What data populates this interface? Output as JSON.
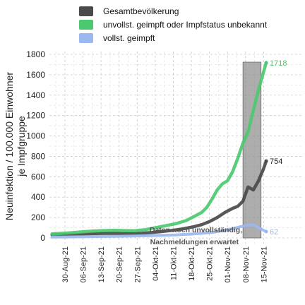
{
  "chart_data": {
    "type": "line",
    "ylabel": "Neuinfektion / 100.000 Einwohner\nje Impfgruppe",
    "ylim": [
      0,
      1800
    ],
    "yticks": [
      0,
      200,
      400,
      600,
      800,
      1000,
      1200,
      1400,
      1600,
      1800
    ],
    "xlim": [
      "2021-08-24",
      "2021-11-19"
    ],
    "xticks": [
      "2021-08-30",
      "2021-09-06",
      "2021-09-13",
      "2021-09-20",
      "2021-09-27",
      "2021-10-04",
      "2021-10-11",
      "2021-10-18",
      "2021-10-25",
      "2021-11-01",
      "2021-11-08",
      "2021-11-15"
    ],
    "xtick_labels": [
      "30-Aug-21",
      "06-Sep-21",
      "13-Sep-21",
      "20-Sep-21",
      "27-Sep-21",
      "04-Okt-21",
      "11-Okt-21",
      "18-Okt-21",
      "25-Okt-21",
      "01-Nov-21",
      "08-Nov-21",
      "15-Nov-21"
    ],
    "grid": true,
    "legend_position": "top",
    "shaded_region": {
      "x_start": "2021-11-07",
      "x_end": "2021-11-14",
      "label_line1": "Daten noch unvollständig,",
      "label_line2": "Nachmeldungen erwartet"
    },
    "series": [
      {
        "name": "Gesamtbevölkerung",
        "color": "#4a4a4a",
        "end_label": "754",
        "points": [
          [
            "2021-08-25",
            30
          ],
          [
            "2021-08-28",
            32
          ],
          [
            "2021-09-01",
            34
          ],
          [
            "2021-09-05",
            36
          ],
          [
            "2021-09-09",
            40
          ],
          [
            "2021-09-13",
            45
          ],
          [
            "2021-09-17",
            44
          ],
          [
            "2021-09-21",
            42
          ],
          [
            "2021-09-25",
            42
          ],
          [
            "2021-09-29",
            46
          ],
          [
            "2021-10-03",
            55
          ],
          [
            "2021-10-07",
            64
          ],
          [
            "2021-10-11",
            75
          ],
          [
            "2021-10-15",
            90
          ],
          [
            "2021-10-19",
            110
          ],
          [
            "2021-10-22",
            130
          ],
          [
            "2021-10-25",
            160
          ],
          [
            "2021-10-28",
            200
          ],
          [
            "2021-10-31",
            250
          ],
          [
            "2021-11-03",
            290
          ],
          [
            "2021-11-05",
            310
          ],
          [
            "2021-11-07",
            360
          ],
          [
            "2021-11-09",
            500
          ],
          [
            "2021-11-11",
            470
          ],
          [
            "2021-11-13",
            560
          ],
          [
            "2021-11-15",
            680
          ],
          [
            "2021-11-16",
            754
          ]
        ]
      },
      {
        "name": "unvollst. geimpft oder Impfstatus unbekannt",
        "color": "#4cc96f",
        "end_label": "1718",
        "points": [
          [
            "2021-08-25",
            40
          ],
          [
            "2021-08-29",
            45
          ],
          [
            "2021-09-02",
            52
          ],
          [
            "2021-09-06",
            60
          ],
          [
            "2021-09-10",
            68
          ],
          [
            "2021-09-14",
            72
          ],
          [
            "2021-09-18",
            75
          ],
          [
            "2021-09-22",
            72
          ],
          [
            "2021-09-26",
            70
          ],
          [
            "2021-09-30",
            80
          ],
          [
            "2021-10-04",
            100
          ],
          [
            "2021-10-08",
            120
          ],
          [
            "2021-10-12",
            140
          ],
          [
            "2021-10-16",
            170
          ],
          [
            "2021-10-19",
            210
          ],
          [
            "2021-10-22",
            250
          ],
          [
            "2021-10-24",
            300
          ],
          [
            "2021-10-26",
            380
          ],
          [
            "2021-10-28",
            470
          ],
          [
            "2021-10-30",
            530
          ],
          [
            "2021-11-01",
            560
          ],
          [
            "2021-11-03",
            650
          ],
          [
            "2021-11-05",
            780
          ],
          [
            "2021-11-07",
            930
          ],
          [
            "2021-11-09",
            1040
          ],
          [
            "2021-11-11",
            1250
          ],
          [
            "2021-11-13",
            1450
          ],
          [
            "2021-11-16",
            1718
          ]
        ]
      },
      {
        "name": "vollst. geimpft",
        "color": "#9bb8f0",
        "end_label": "62",
        "points": [
          [
            "2021-08-25",
            8
          ],
          [
            "2021-08-31",
            10
          ],
          [
            "2021-09-06",
            12
          ],
          [
            "2021-09-12",
            14
          ],
          [
            "2021-09-18",
            16
          ],
          [
            "2021-09-24",
            18
          ],
          [
            "2021-09-30",
            21
          ],
          [
            "2021-10-06",
            25
          ],
          [
            "2021-10-12",
            30
          ],
          [
            "2021-10-18",
            38
          ],
          [
            "2021-10-22",
            45
          ],
          [
            "2021-10-26",
            55
          ],
          [
            "2021-10-30",
            70
          ],
          [
            "2021-11-03",
            90
          ],
          [
            "2021-11-06",
            110
          ],
          [
            "2021-11-09",
            125
          ],
          [
            "2021-11-11",
            130
          ],
          [
            "2021-11-13",
            100
          ],
          [
            "2021-11-16",
            62
          ]
        ]
      }
    ]
  }
}
